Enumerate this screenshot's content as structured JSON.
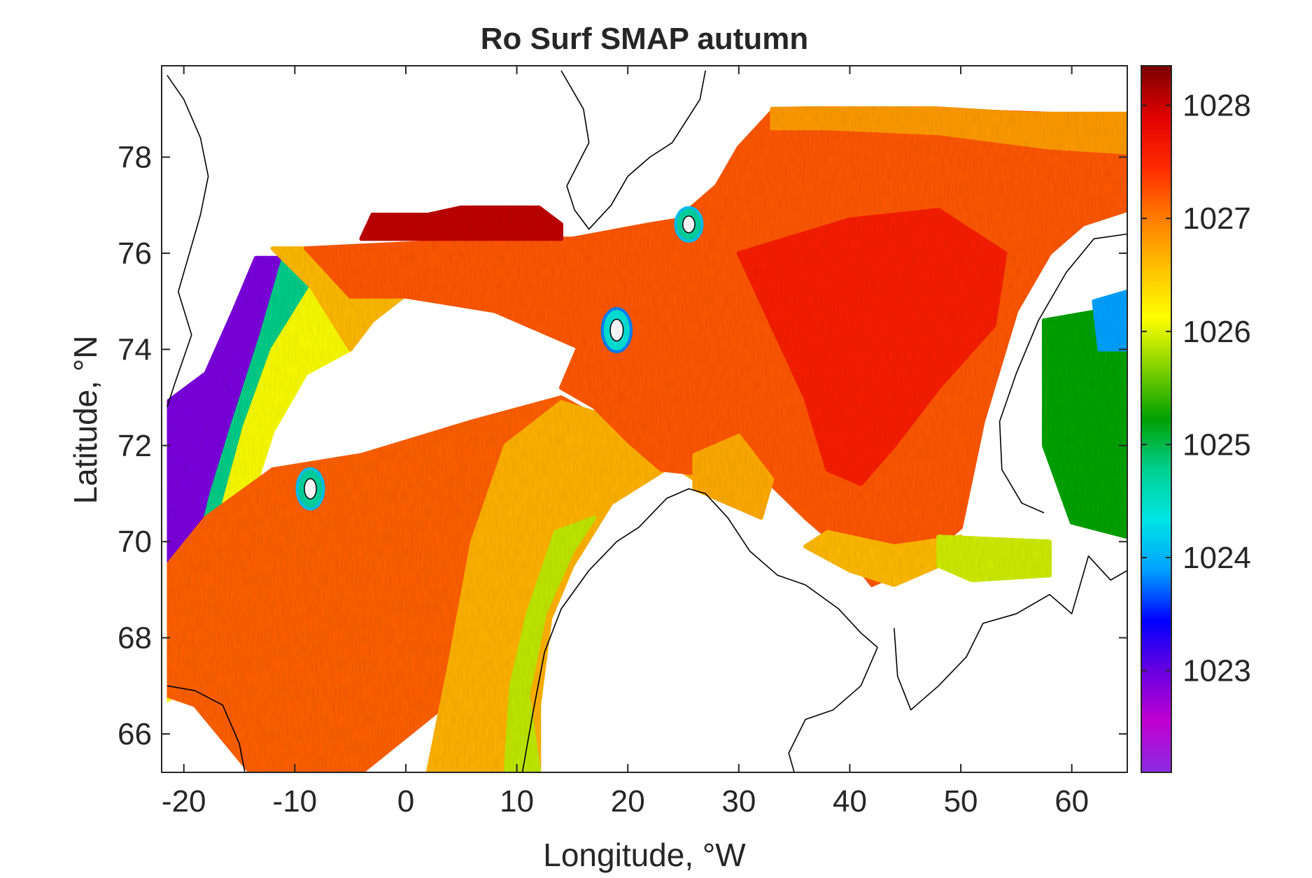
{
  "chart_data": {
    "type": "heatmap",
    "title": "Ro Surf SMAP autumn",
    "xlabel": "Longitude, °W",
    "ylabel": "Latitude, °N",
    "xlim": [
      -22,
      65
    ],
    "ylim": [
      65.2,
      79.9
    ],
    "xticks": [
      -20,
      -10,
      0,
      10,
      20,
      30,
      40,
      50,
      60
    ],
    "yticks": [
      66,
      68,
      70,
      72,
      74,
      76,
      78
    ],
    "colorbar": {
      "range": [
        1022.1,
        1028.35
      ],
      "ticks": [
        1023,
        1024,
        1025,
        1026,
        1027,
        1028
      ],
      "colormap": [
        "#8a2be2",
        "#c000d0",
        "#6a00e0",
        "#0000ff",
        "#00a0ff",
        "#00e5e5",
        "#00d090",
        "#00a000",
        "#80d000",
        "#ffff00",
        "#ffc000",
        "#ff7a00",
        "#ff2a00",
        "#e00000",
        "#7a0000"
      ]
    },
    "regions": [
      {
        "polygon": [
          [
            -13.5,
            75.9
          ],
          [
            -11,
            75.9
          ],
          [
            -13,
            74.3
          ],
          [
            -15.5,
            72.5
          ],
          [
            -17.5,
            71
          ],
          [
            -19,
            69.6
          ],
          [
            -21.5,
            69.4
          ],
          [
            -21.5,
            72.9
          ],
          [
            -18,
            73.5
          ],
          [
            -15.5,
            74.8
          ]
        ],
        "value": 1022.9
      },
      {
        "polygon": [
          [
            -11,
            75.9
          ],
          [
            -8.5,
            75.3
          ],
          [
            -12,
            74
          ],
          [
            -14.5,
            72.4
          ],
          [
            -16.5,
            70.7
          ],
          [
            -18.5,
            69.4
          ],
          [
            -19,
            69.6
          ],
          [
            -17.5,
            71
          ],
          [
            -15.5,
            72.5
          ],
          [
            -13,
            74.3
          ]
        ],
        "value": 1024.8
      },
      {
        "polygon": [
          [
            -8.5,
            75.3
          ],
          [
            -5,
            74
          ],
          [
            -9,
            73.5
          ],
          [
            -12,
            72.3
          ],
          [
            -14.5,
            70.5
          ],
          [
            -17,
            68.5
          ],
          [
            -19.5,
            67
          ],
          [
            -21.5,
            66.7
          ],
          [
            -21.5,
            69.4
          ],
          [
            -18.5,
            69.4
          ],
          [
            -16.5,
            70.7
          ],
          [
            -14.5,
            72.4
          ],
          [
            -12,
            74
          ]
        ],
        "value": 1026.1
      },
      {
        "polygon": [
          [
            -12,
            76.1
          ],
          [
            1,
            76.1
          ],
          [
            2,
            75.5
          ],
          [
            -3,
            74.6
          ],
          [
            -5,
            74
          ],
          [
            -8.5,
            75.3
          ]
        ],
        "value": 1026.6
      },
      {
        "polygon": [
          [
            -21.5,
            66.8
          ],
          [
            -21.5,
            69.5
          ],
          [
            -18,
            70.5
          ],
          [
            -12,
            71.5
          ],
          [
            -4,
            71.8
          ],
          [
            6,
            72.5
          ],
          [
            14,
            73
          ],
          [
            18,
            72.5
          ],
          [
            20,
            71.2
          ],
          [
            16,
            70.2
          ],
          [
            11,
            69
          ],
          [
            8,
            67.5
          ],
          [
            3,
            66.5
          ],
          [
            -4,
            65.2
          ],
          [
            -14,
            65.2
          ],
          [
            -19,
            66.6
          ]
        ],
        "value": 1027.15
      },
      {
        "polygon": [
          [
            2,
            65.2
          ],
          [
            12,
            65.2
          ],
          [
            12,
            66.6
          ],
          [
            13,
            68.4
          ],
          [
            15,
            69.5
          ],
          [
            18.5,
            70.8
          ],
          [
            24,
            71.6
          ],
          [
            26,
            71.3
          ],
          [
            21,
            72.4
          ],
          [
            14,
            72.9
          ],
          [
            9,
            72
          ],
          [
            6,
            70
          ],
          [
            4,
            67.5
          ]
        ],
        "value": 1026.65
      },
      {
        "polygon": [
          [
            9,
            65.2
          ],
          [
            12,
            65.2
          ],
          [
            11,
            66.8
          ],
          [
            12.5,
            68.5
          ],
          [
            15,
            69.8
          ],
          [
            17,
            70.5
          ],
          [
            13.5,
            70.2
          ],
          [
            11,
            68.5
          ],
          [
            9.5,
            67
          ]
        ],
        "value": 1025.9
      },
      {
        "polygon": [
          [
            -9,
            76.1
          ],
          [
            9,
            76.3
          ],
          [
            15,
            76.3
          ],
          [
            22,
            76.6
          ],
          [
            30,
            76.9
          ],
          [
            31,
            74.6
          ],
          [
            28,
            74.2
          ],
          [
            22,
            73.9
          ],
          [
            16,
            74
          ],
          [
            8,
            74.8
          ],
          [
            0,
            75.1
          ],
          [
            -5,
            75.1
          ]
        ],
        "value": 1027.2
      },
      {
        "polygon": [
          [
            -4,
            76.3
          ],
          [
            14,
            76.3
          ],
          [
            14,
            76.6
          ],
          [
            12,
            76.95
          ],
          [
            5,
            76.95
          ],
          [
            2,
            76.8
          ],
          [
            -3,
            76.8
          ]
        ],
        "value": 1028.05
      },
      {
        "polygon": [
          [
            24,
            76.6
          ],
          [
            28,
            77.4
          ],
          [
            30,
            78.2
          ],
          [
            33,
            78.95
          ],
          [
            45,
            79
          ],
          [
            58,
            78.9
          ],
          [
            65,
            78.7
          ],
          [
            65,
            76.9
          ],
          [
            61,
            76.6
          ],
          [
            58,
            76
          ],
          [
            55,
            74.8
          ],
          [
            52,
            72.5
          ],
          [
            50,
            70.3
          ],
          [
            46,
            69.5
          ],
          [
            42,
            69.1
          ],
          [
            40,
            69.7
          ],
          [
            36,
            70.5
          ],
          [
            32,
            71.4
          ],
          [
            27,
            71.4
          ],
          [
            23,
            71.5
          ],
          [
            20,
            72.1
          ],
          [
            17,
            72.8
          ],
          [
            14,
            73.2
          ],
          [
            16,
            74.3
          ],
          [
            22,
            74.6
          ]
        ],
        "value": 1027.2
      },
      {
        "polygon": [
          [
            30,
            76
          ],
          [
            40,
            76.7
          ],
          [
            48,
            76.9
          ],
          [
            54,
            76
          ],
          [
            53,
            74.5
          ],
          [
            48,
            73.2
          ],
          [
            44,
            72
          ],
          [
            41,
            71.2
          ],
          [
            38,
            71.5
          ],
          [
            36,
            73
          ],
          [
            33,
            74.5
          ]
        ],
        "value": 1027.55
      },
      {
        "polygon": [
          [
            26,
            71.8
          ],
          [
            30,
            72.2
          ],
          [
            33,
            71.3
          ],
          [
            32,
            70.5
          ],
          [
            29,
            70.8
          ],
          [
            26,
            71.1
          ]
        ],
        "value": 1026.7
      },
      {
        "polygon": [
          [
            36,
            69.9
          ],
          [
            40,
            69.4
          ],
          [
            44,
            69.1
          ],
          [
            48,
            69.5
          ],
          [
            50,
            70.1
          ],
          [
            44,
            69.9
          ],
          [
            38,
            70.2
          ]
        ],
        "value": 1026.6
      },
      {
        "polygon": [
          [
            48,
            70.1
          ],
          [
            58,
            70
          ],
          [
            58,
            69.3
          ],
          [
            51,
            69.2
          ],
          [
            48,
            69.5
          ]
        ],
        "value": 1025.95
      },
      {
        "polygon": [
          [
            57.5,
            74.6
          ],
          [
            65,
            74.9
          ],
          [
            65,
            70.1
          ],
          [
            60,
            70.4
          ],
          [
            57.5,
            72
          ]
        ],
        "value": 1025.25
      },
      {
        "polygon": [
          [
            62,
            75
          ],
          [
            65,
            75.2
          ],
          [
            65,
            74
          ],
          [
            62.5,
            74
          ]
        ],
        "value": 1023.9
      },
      {
        "polygon": [
          [
            33,
            79
          ],
          [
            45,
            79.05
          ],
          [
            56,
            78.9
          ],
          [
            65,
            78.9
          ],
          [
            65,
            78.1
          ],
          [
            58,
            78.2
          ],
          [
            48,
            78.5
          ],
          [
            38,
            78.6
          ],
          [
            33,
            78.6
          ]
        ],
        "value": 1026.8
      }
    ],
    "islands": [
      {
        "center": [
          -8.6,
          71.1
        ],
        "radius": [
          1.2,
          0.42
        ],
        "value": 1024.7
      },
      {
        "center": [
          19,
          74.4
        ],
        "radius": [
          1.3,
          0.45
        ],
        "value": 1024.4
      },
      {
        "center": [
          25.5,
          76.6
        ],
        "radius": [
          1.2,
          0.35
        ],
        "value": 1024.7
      }
    ],
    "coastlines": [
      {
        "points": [
          [
            -21.5,
            79.7
          ],
          [
            -20,
            79.2
          ],
          [
            -18.5,
            78.4
          ],
          [
            -17.8,
            77.6
          ],
          [
            -18.5,
            76.8
          ],
          [
            -19.5,
            76
          ],
          [
            -20.5,
            75.2
          ],
          [
            -19.3,
            74.3
          ],
          [
            -20.8,
            73.3
          ],
          [
            -21.5,
            72.8
          ]
        ]
      },
      {
        "points": [
          [
            -21.5,
            67
          ],
          [
            -19,
            66.9
          ],
          [
            -16.5,
            66.6
          ],
          [
            -15,
            65.8
          ],
          [
            -14.5,
            65.2
          ]
        ]
      },
      {
        "points": [
          [
            10.5,
            65.2
          ],
          [
            11.5,
            66.5
          ],
          [
            12.5,
            67.7
          ],
          [
            14,
            68.6
          ],
          [
            16.5,
            69.4
          ],
          [
            19,
            70
          ],
          [
            21,
            70.3
          ],
          [
            23.5,
            70.9
          ],
          [
            25.5,
            71.1
          ],
          [
            27,
            71
          ],
          [
            29,
            70.5
          ],
          [
            31,
            69.8
          ],
          [
            33.5,
            69.3
          ],
          [
            36,
            69.1
          ],
          [
            39,
            68.6
          ],
          [
            41,
            68.1
          ],
          [
            42.5,
            67.8
          ]
        ]
      },
      {
        "points": [
          [
            42.5,
            67.8
          ],
          [
            41,
            67
          ],
          [
            38.5,
            66.5
          ],
          [
            36,
            66.3
          ],
          [
            34.5,
            65.6
          ],
          [
            35,
            65.2
          ]
        ]
      },
      {
        "points": [
          [
            44,
            68.2
          ],
          [
            44.3,
            67.2
          ],
          [
            45.5,
            66.5
          ],
          [
            48,
            67
          ],
          [
            50.5,
            67.6
          ],
          [
            52,
            68.3
          ],
          [
            55,
            68.5
          ],
          [
            58,
            68.9
          ],
          [
            60,
            68.5
          ],
          [
            61.5,
            69.7
          ],
          [
            63.5,
            69.2
          ],
          [
            65,
            69.4
          ]
        ]
      },
      {
        "points": [
          [
            65,
            76.4
          ],
          [
            62,
            76.3
          ],
          [
            59.5,
            75.6
          ],
          [
            57,
            74.6
          ],
          [
            55,
            73.5
          ],
          [
            53.5,
            72.5
          ],
          [
            53.7,
            71.5
          ],
          [
            55.5,
            70.8
          ],
          [
            57.5,
            70.6
          ]
        ]
      },
      {
        "points": [
          [
            14,
            79.8
          ],
          [
            16,
            79
          ],
          [
            16.5,
            78.3
          ],
          [
            14.5,
            77.4
          ],
          [
            15.2,
            76.9
          ],
          [
            16.5,
            76.5
          ],
          [
            18.5,
            77
          ],
          [
            20,
            77.6
          ],
          [
            22,
            78
          ],
          [
            24,
            78.3
          ],
          [
            26.5,
            79.2
          ],
          [
            27,
            79.8
          ]
        ]
      }
    ]
  }
}
